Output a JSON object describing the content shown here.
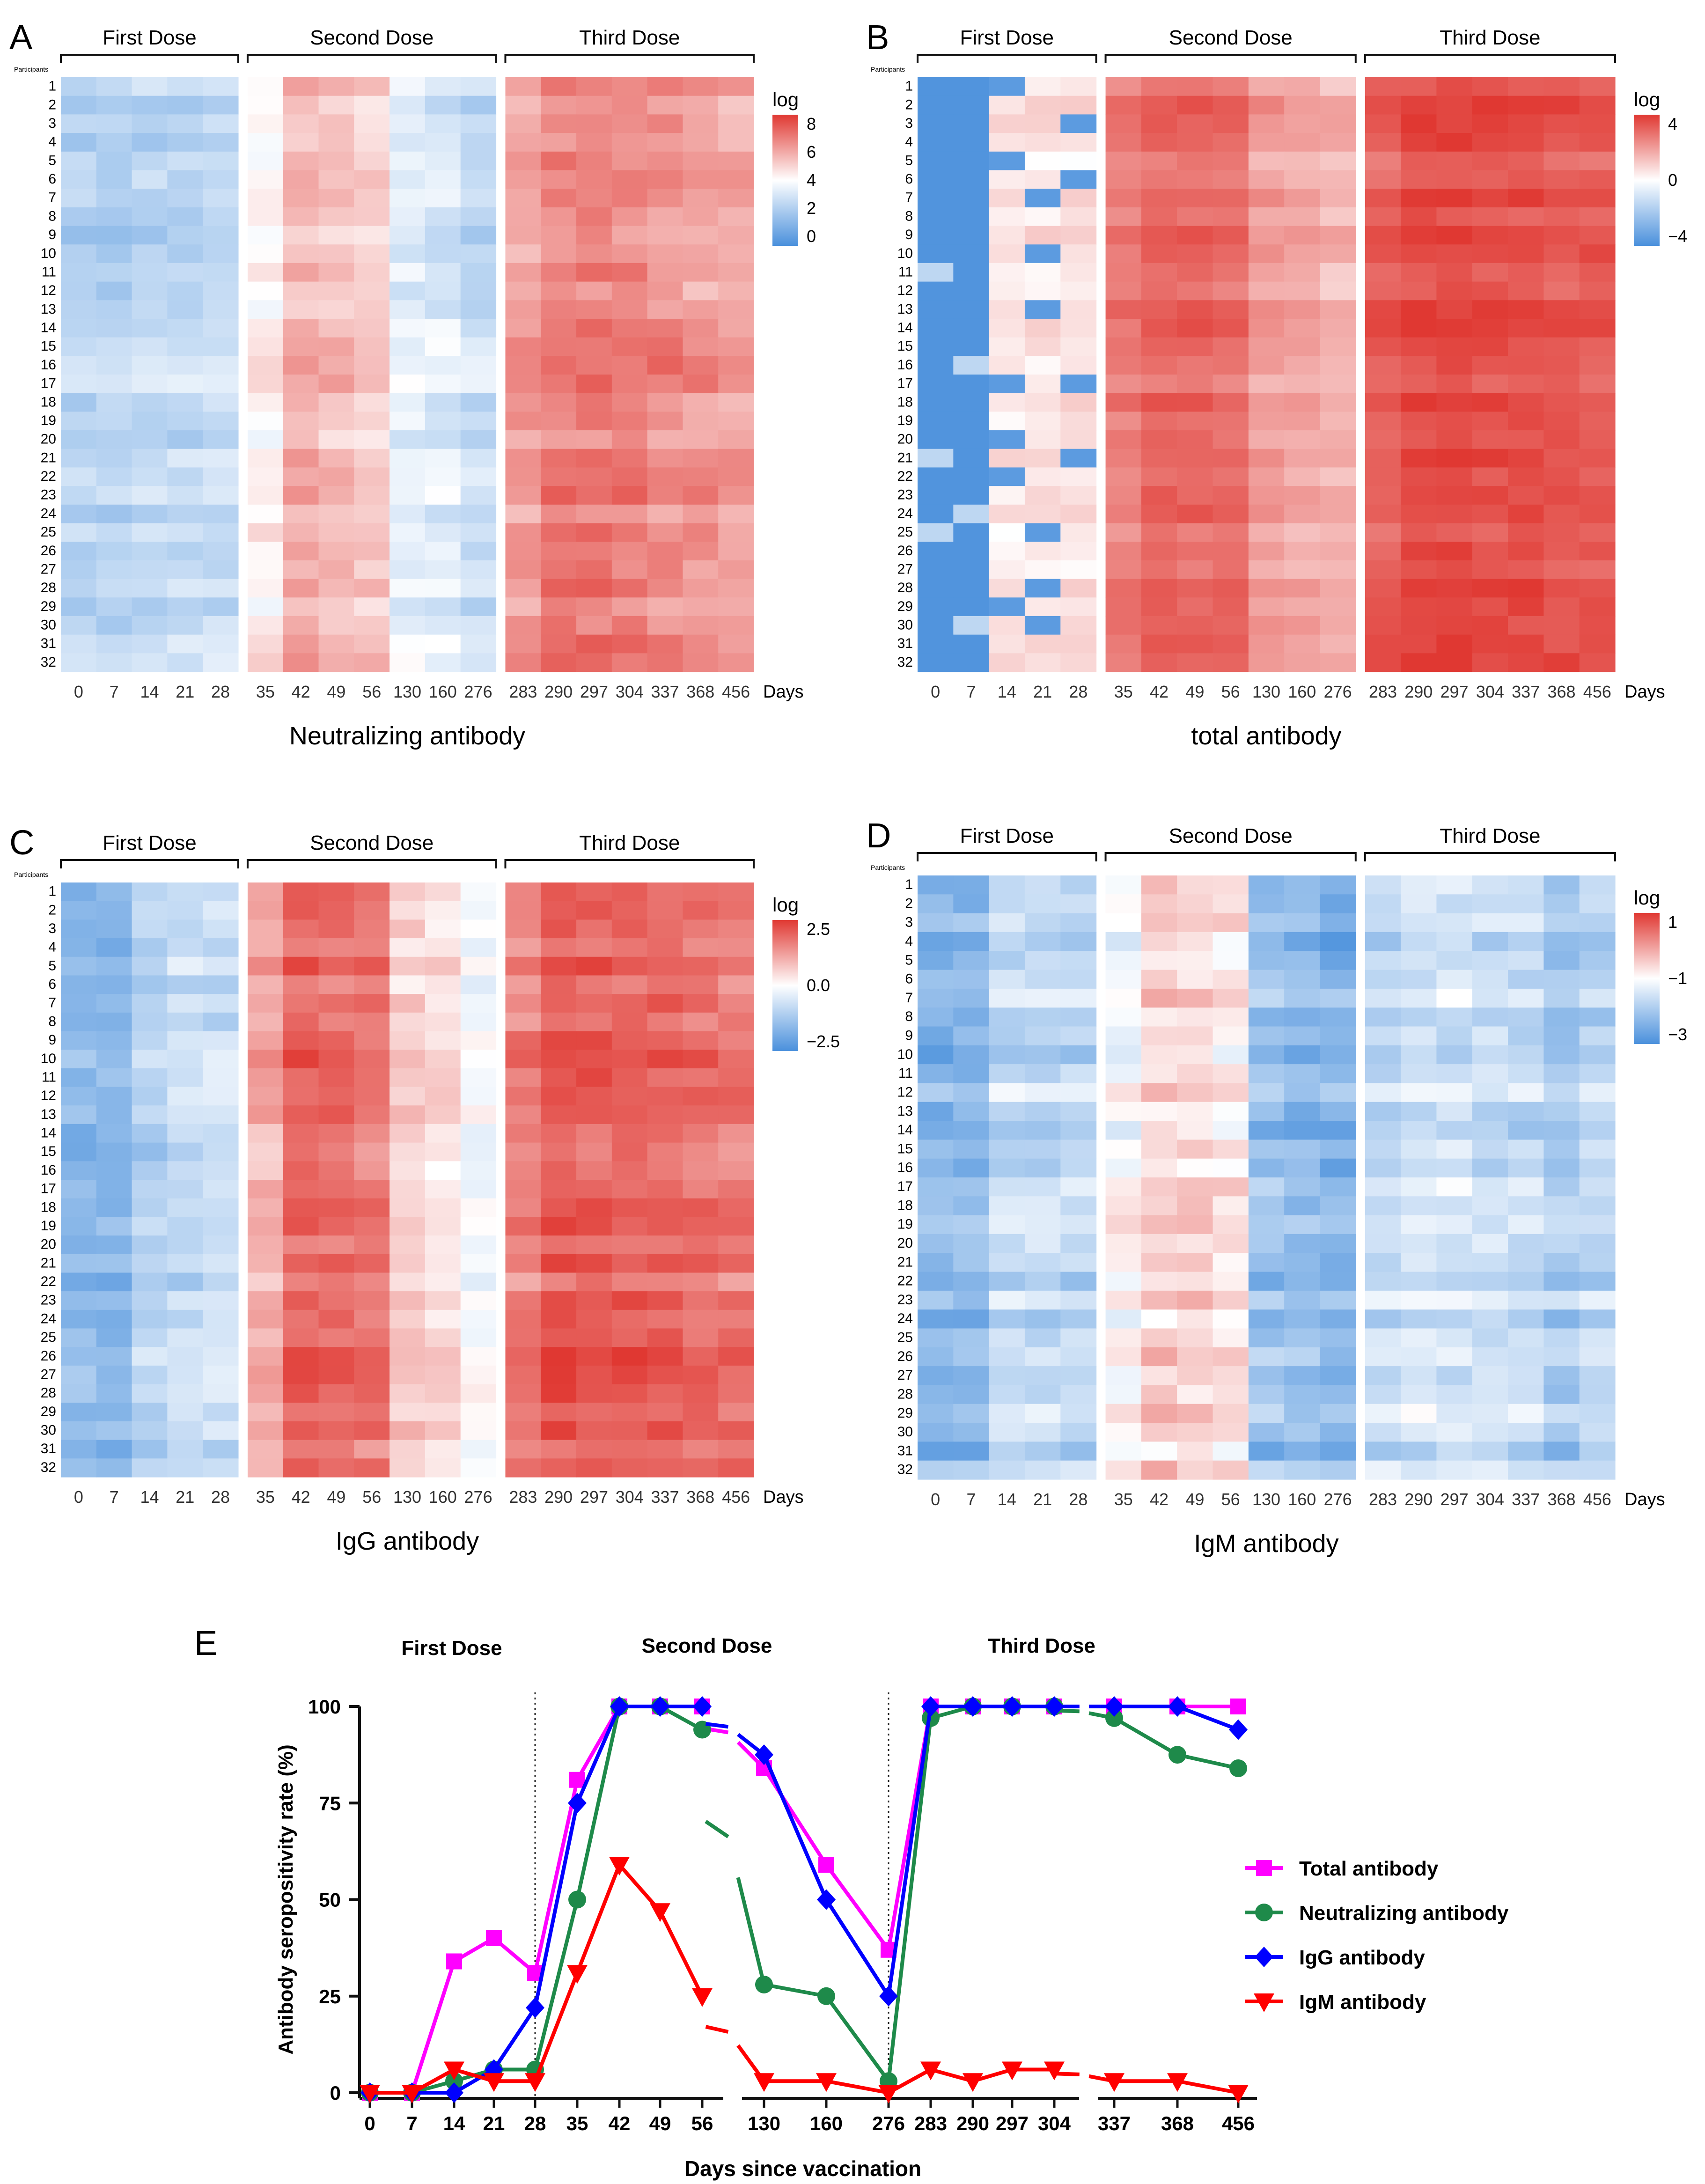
{
  "panels": [
    {
      "letter": "A",
      "title": "Neutralizing antibody",
      "dose_labels": [
        "First Dose",
        "Second Dose",
        "Third Dose"
      ],
      "days": [
        "0",
        "7",
        "14",
        "21",
        "28",
        "35",
        "42",
        "49",
        "56",
        "130",
        "160",
        "276",
        "283",
        "290",
        "297",
        "304",
        "337",
        "368",
        "456"
      ],
      "days_label": "Days",
      "participants_label": "Participants",
      "participants": [
        "1",
        "2",
        "3",
        "4",
        "5",
        "6",
        "7",
        "8",
        "9",
        "10",
        "11",
        "12",
        "13",
        "14",
        "15",
        "16",
        "17",
        "18",
        "19",
        "20",
        "21",
        "22",
        "23",
        "24",
        "25",
        "26",
        "27",
        "28",
        "29",
        "30",
        "31",
        "32"
      ],
      "legend_title": "log",
      "legend_ticks": [
        "8",
        "6",
        "4",
        "2",
        "0"
      ],
      "scale": "neut"
    },
    {
      "letter": "B",
      "title": "total antibody",
      "dose_labels": [
        "First Dose",
        "Second Dose",
        "Third Dose"
      ],
      "days": [
        "0",
        "7",
        "14",
        "21",
        "28",
        "35",
        "42",
        "49",
        "56",
        "130",
        "160",
        "276",
        "283",
        "290",
        "297",
        "304",
        "337",
        "368",
        "456"
      ],
      "days_label": "Days",
      "participants_label": "Participants",
      "participants": [
        "1",
        "2",
        "3",
        "4",
        "5",
        "6",
        "7",
        "8",
        "9",
        "10",
        "11",
        "12",
        "13",
        "14",
        "15",
        "16",
        "17",
        "18",
        "19",
        "20",
        "21",
        "22",
        "23",
        "24",
        "25",
        "26",
        "27",
        "28",
        "29",
        "30",
        "31",
        "32"
      ],
      "legend_title": "log",
      "legend_ticks": [
        "4",
        "0",
        "−4"
      ],
      "scale": "total"
    },
    {
      "letter": "C",
      "title": "IgG antibody",
      "dose_labels": [
        "First Dose",
        "Second Dose",
        "Third Dose"
      ],
      "days": [
        "0",
        "7",
        "14",
        "21",
        "28",
        "35",
        "42",
        "49",
        "56",
        "130",
        "160",
        "276",
        "283",
        "290",
        "297",
        "304",
        "337",
        "368",
        "456"
      ],
      "days_label": "Days",
      "participants_label": "Participants",
      "participants": [
        "1",
        "2",
        "3",
        "4",
        "5",
        "6",
        "7",
        "8",
        "9",
        "10",
        "11",
        "12",
        "13",
        "14",
        "15",
        "16",
        "17",
        "18",
        "19",
        "20",
        "21",
        "22",
        "23",
        "24",
        "25",
        "26",
        "27",
        "28",
        "29",
        "30",
        "31",
        "32"
      ],
      "legend_title": "log",
      "legend_ticks": [
        "2.5",
        "0.0",
        "−2.5"
      ],
      "scale": "igg"
    },
    {
      "letter": "D",
      "title": "IgM antibody",
      "dose_labels": [
        "First Dose",
        "Second Dose",
        "Third Dose"
      ],
      "days": [
        "0",
        "7",
        "14",
        "21",
        "28",
        "35",
        "42",
        "49",
        "56",
        "130",
        "160",
        "276",
        "283",
        "290",
        "297",
        "304",
        "337",
        "368",
        "456"
      ],
      "days_label": "Days",
      "participants_label": "Participants",
      "participants": [
        "1",
        "2",
        "3",
        "4",
        "5",
        "6",
        "7",
        "8",
        "9",
        "10",
        "11",
        "12",
        "13",
        "14",
        "15",
        "16",
        "17",
        "18",
        "19",
        "20",
        "21",
        "22",
        "23",
        "24",
        "25",
        "26",
        "27",
        "28",
        "29",
        "30",
        "31",
        "32"
      ],
      "legend_title": "log",
      "legend_ticks": [
        "1",
        "−1",
        "−3"
      ],
      "scale": "igm"
    }
  ],
  "chart_data": {
    "type": "line",
    "panel_letter": "E",
    "dose_labels": [
      "First Dose",
      "Second Dose",
      "Third Dose"
    ],
    "xlabel": "Days since vaccination",
    "ylabel": "Antibody seropositivity rate (%)",
    "ylim": [
      0,
      100
    ],
    "yticks": [
      "0",
      "25",
      "50",
      "75",
      "100"
    ],
    "x": [
      "0",
      "7",
      "14",
      "21",
      "28",
      "35",
      "42",
      "49",
      "56",
      "130",
      "160",
      "276",
      "283",
      "290",
      "297",
      "304",
      "337",
      "368",
      "456"
    ],
    "dose_boundaries_after": [
      "28",
      "276"
    ],
    "series": [
      {
        "name": "Total antibody",
        "color": "#ff00ff",
        "marker": "square",
        "values": [
          0,
          0,
          34,
          40,
          31,
          81,
          100,
          100,
          100,
          84,
          59,
          37,
          100,
          100,
          100,
          100,
          100,
          100,
          100
        ]
      },
      {
        "name": "Neutralizing antibody",
        "color": "#1e8a4a",
        "marker": "circle",
        "values": [
          0,
          0,
          3,
          6,
          6,
          50,
          100,
          100,
          94,
          28,
          25,
          3,
          97,
          100,
          100,
          100,
          97,
          87.5,
          84
        ]
      },
      {
        "name": "IgG antibody",
        "color": "#0000ff",
        "marker": "diamond",
        "values": [
          0,
          0,
          0,
          6,
          22,
          75,
          100,
          100,
          100,
          87.5,
          50,
          25,
          100,
          100,
          100,
          100,
          100,
          100,
          94
        ]
      },
      {
        "name": "IgM antibody",
        "color": "#ff0000",
        "marker": "triangle-down",
        "values": [
          0,
          0,
          6,
          3,
          3,
          31,
          59,
          47,
          25,
          3,
          3,
          0,
          6,
          3,
          6,
          6,
          3,
          3,
          0
        ]
      }
    ]
  }
}
